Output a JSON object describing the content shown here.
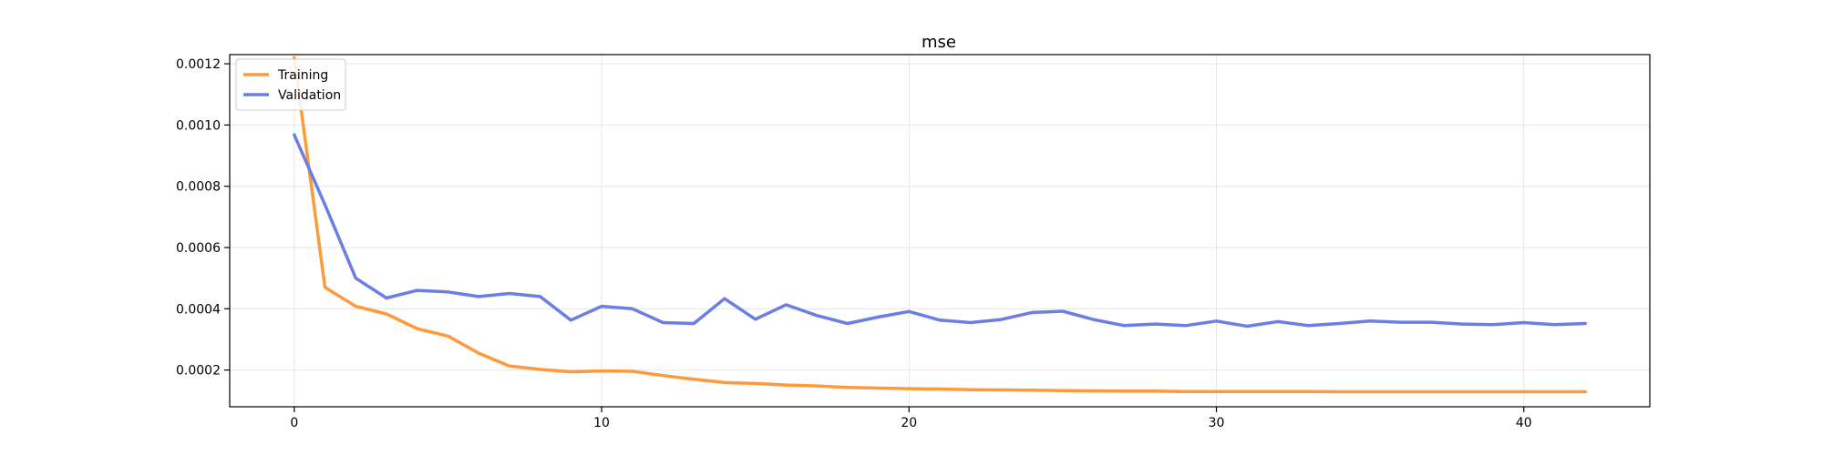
{
  "chart_data": {
    "type": "line",
    "title": "mse",
    "xlabel": "",
    "ylabel": "",
    "xlim": [
      -2.1,
      44.1
    ],
    "ylim": [
      8e-05,
      0.00123
    ],
    "xticks": [
      0,
      10,
      20,
      30,
      40
    ],
    "xtick_labels": [
      "0",
      "10",
      "20",
      "30",
      "40"
    ],
    "yticks": [
      0.0002,
      0.0004,
      0.0006,
      0.0008,
      0.001,
      0.0012
    ],
    "ytick_labels": [
      "0.0002",
      "0.0004",
      "0.0006",
      "0.0008",
      "0.0010",
      "0.0012"
    ],
    "grid": true,
    "legend_position": "top-left",
    "x": [
      0,
      1,
      2,
      3,
      4,
      5,
      6,
      7,
      8,
      9,
      10,
      11,
      12,
      13,
      14,
      15,
      16,
      17,
      18,
      19,
      20,
      21,
      22,
      23,
      24,
      25,
      26,
      27,
      28,
      29,
      30,
      31,
      32,
      33,
      34,
      35,
      36,
      37,
      38,
      39,
      40,
      41,
      42
    ],
    "series": [
      {
        "name": "Training",
        "color": "#ff9a3c",
        "values": [
          0.00122,
          0.00047,
          0.000408,
          0.000383,
          0.000335,
          0.000311,
          0.000255,
          0.000213,
          0.000202,
          0.000194,
          0.000197,
          0.000196,
          0.000182,
          0.00017,
          0.000159,
          0.000156,
          0.000151,
          0.000148,
          0.000143,
          0.000141,
          0.000139,
          0.000138,
          0.000136,
          0.000135,
          0.000134,
          0.000133,
          0.000132,
          0.000131,
          0.000131,
          0.00013,
          0.00013,
          0.00013,
          0.00013,
          0.00013,
          0.000129,
          0.000129,
          0.000129,
          0.000129,
          0.000129,
          0.000129,
          0.000129,
          0.000129,
          0.000129
        ]
      },
      {
        "name": "Validation",
        "color": "#6b7fe3",
        "values": [
          0.000968,
          0.00074,
          0.0005,
          0.000435,
          0.00046,
          0.000455,
          0.00044,
          0.00045,
          0.00044,
          0.000363,
          0.000408,
          0.0004,
          0.000355,
          0.000352,
          0.000433,
          0.000366,
          0.000413,
          0.000378,
          0.000352,
          0.000373,
          0.000391,
          0.000363,
          0.000355,
          0.000365,
          0.000388,
          0.000392,
          0.000365,
          0.000345,
          0.00035,
          0.000345,
          0.00036,
          0.000343,
          0.000358,
          0.000345,
          0.000352,
          0.00036,
          0.000356,
          0.000356,
          0.00035,
          0.000348,
          0.000355,
          0.000348,
          0.000352
        ]
      }
    ]
  }
}
